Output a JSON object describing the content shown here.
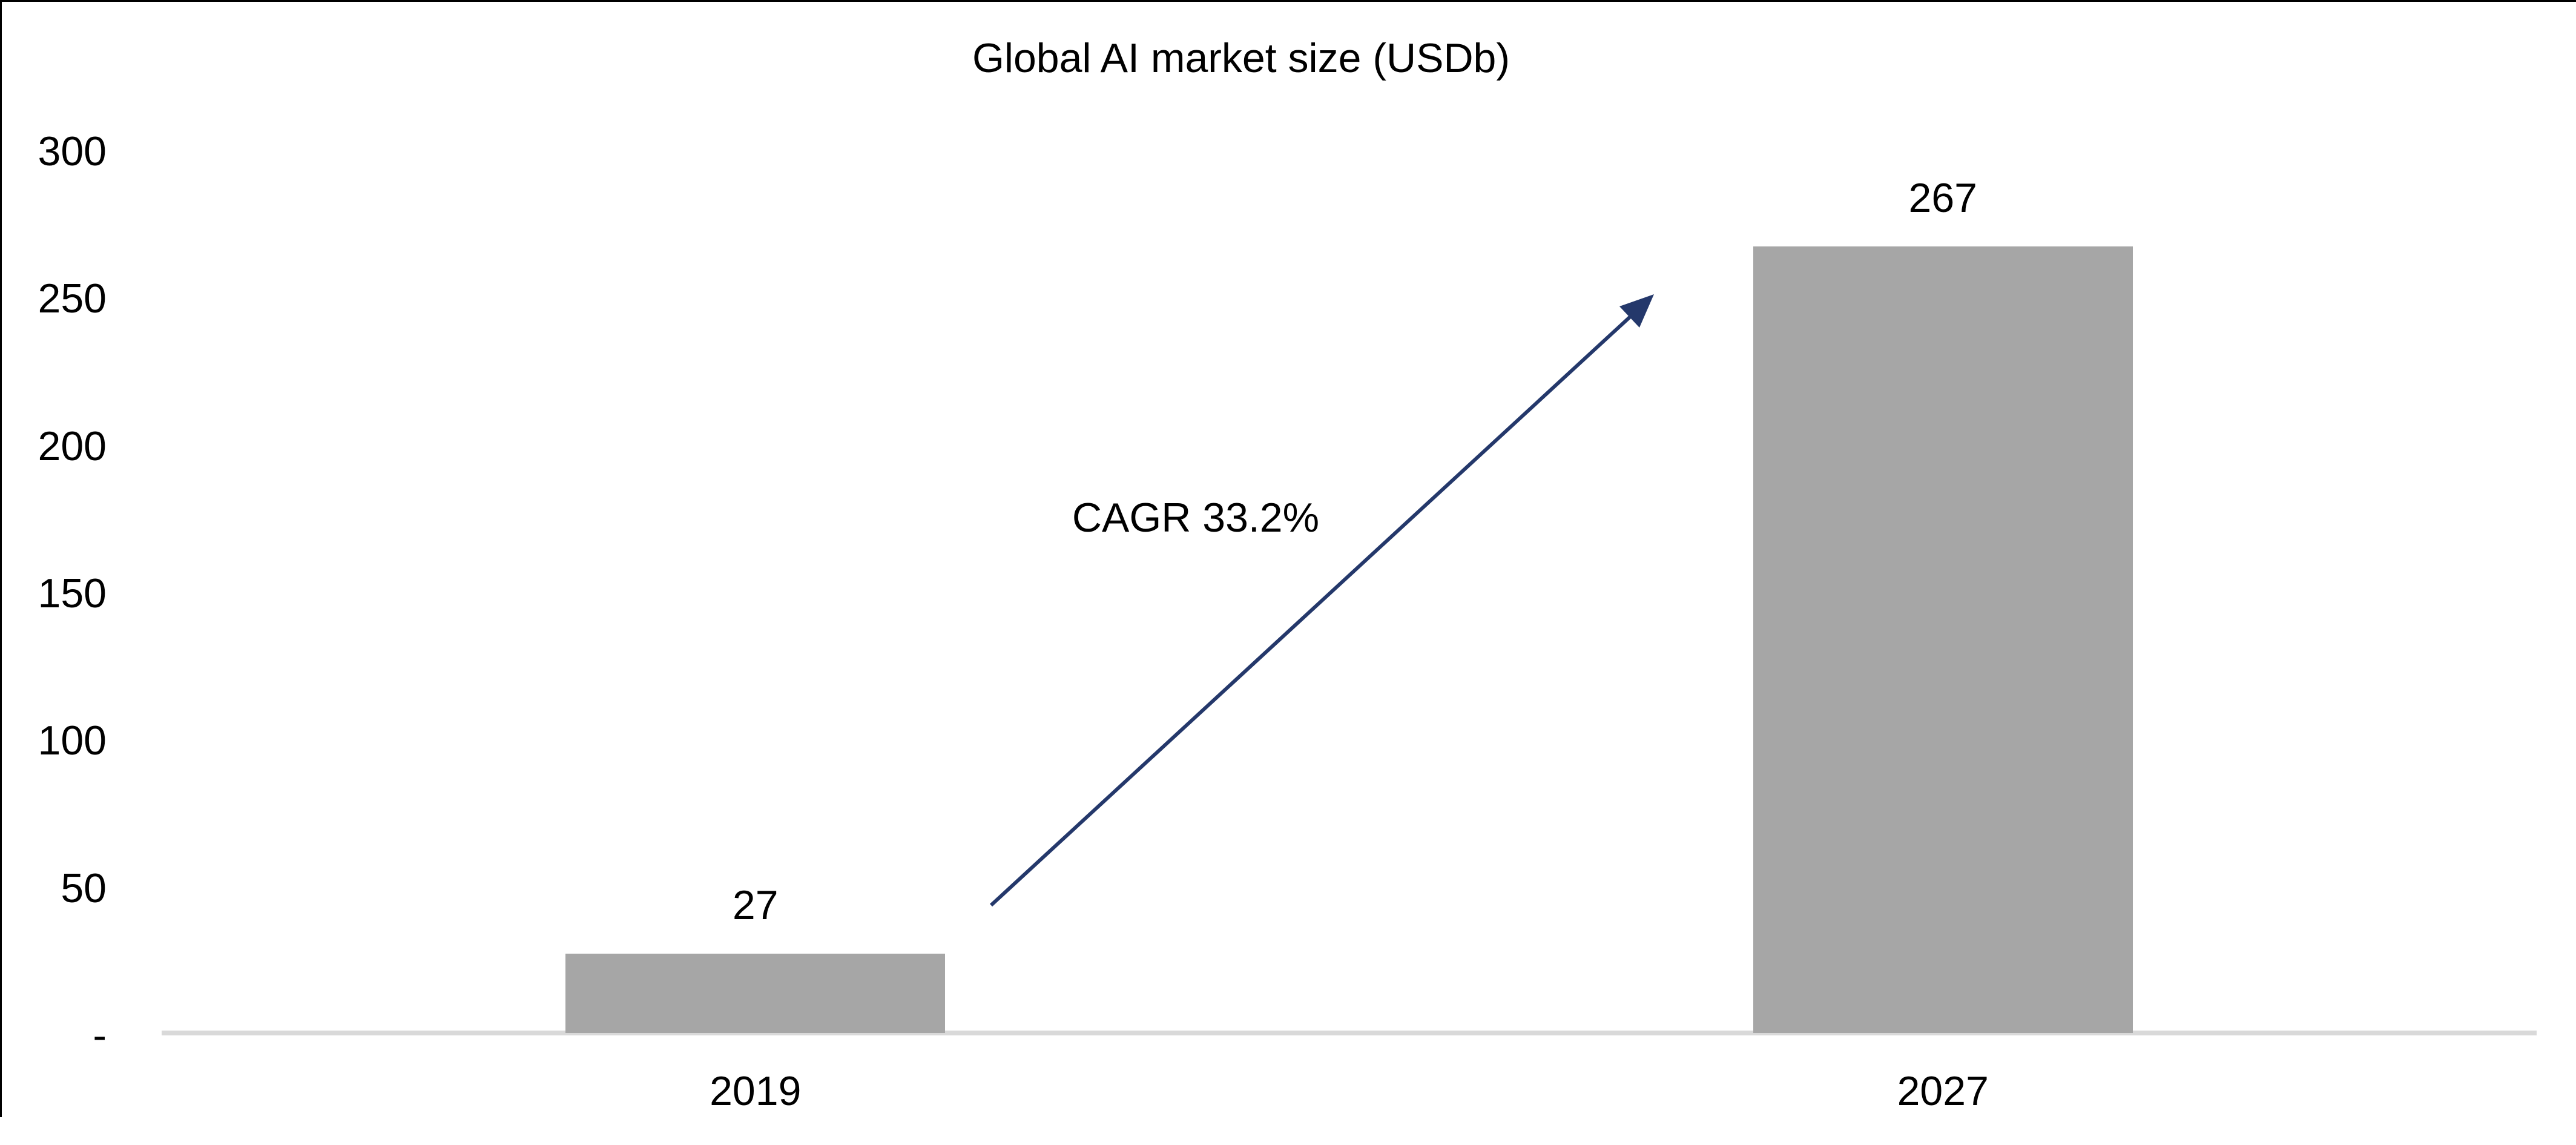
{
  "chart_data": {
    "type": "bar",
    "title": "Global AI market size (USDb)",
    "categories": [
      "2019",
      "2027"
    ],
    "values": [
      27,
      267
    ],
    "series": [
      {
        "name": "Global AI market size (USDb)",
        "values": [
          27,
          267
        ]
      }
    ],
    "bar_value_labels": [
      "27",
      "267"
    ],
    "y_axis": {
      "min": 0,
      "max": 300,
      "tick_interval": 50,
      "ticks": [
        {
          "value": 300,
          "label": "300"
        },
        {
          "value": 250,
          "label": "250"
        },
        {
          "value": 200,
          "label": "200"
        },
        {
          "value": 150,
          "label": "150"
        },
        {
          "value": 100,
          "label": "100"
        },
        {
          "value": 50,
          "label": "50"
        },
        {
          "value": 0,
          "label": "-"
        }
      ]
    },
    "annotation": {
      "label": "CAGR 33.2%",
      "arrow": "diagonal arrow from above 2019 bar to top of 2027 bar"
    },
    "legend": "none",
    "grid": false
  },
  "colors": {
    "background": "#ffffff",
    "text": "#000000",
    "bar_fill": "#a6a6a6",
    "axis_line": "#d9d9d9",
    "arrow": "#24386b",
    "frame_border": "#000000"
  }
}
